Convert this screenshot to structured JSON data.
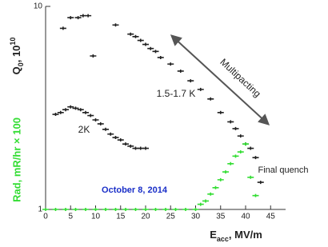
{
  "chart_data": {
    "type": "scatter",
    "ylabel": [
      "Q",
      "0",
      ", 10",
      "10"
    ],
    "y2label": "Rad, mR/hr × 100",
    "xlabel": [
      "E",
      "acc",
      ", MV/m"
    ],
    "xlim": [
      0,
      48
    ],
    "xticks": [
      0,
      5,
      10,
      15,
      20,
      25,
      30,
      35,
      40,
      45
    ],
    "ylim": [
      1,
      10
    ],
    "yticks": [
      1,
      10
    ],
    "log_y": true,
    "annotations": [
      "Multipacting",
      "1.5-1.7 K",
      "2K",
      "Final quench",
      "October 8, 2014"
    ],
    "series": [
      {
        "color": "#222222",
        "x": [
          3.5,
          5,
          6.5,
          7.5,
          8.5,
          9.5,
          14
        ],
        "values": [
          7.8,
          8.8,
          8.8,
          9.0,
          9.0,
          5.7,
          8.1
        ]
      },
      {
        "color": "#222222",
        "x": [
          17,
          18,
          19,
          20,
          21,
          22,
          23,
          25,
          27,
          29,
          31,
          33,
          35,
          37,
          38,
          39,
          40,
          41,
          42,
          43
        ],
        "values": [
          7.3,
          7.1,
          6.8,
          6.5,
          6.2,
          6.0,
          5.6,
          5.2,
          4.8,
          4.3,
          3.9,
          3.5,
          3.0,
          2.7,
          2.5,
          2.3,
          2.1,
          2.0,
          1.8,
          1.36
        ]
      },
      {
        "color": "#222222",
        "x": [
          2,
          3,
          4,
          5,
          6,
          7,
          8,
          9,
          10,
          11,
          12,
          13,
          14,
          15,
          16,
          17,
          18,
          19,
          20
        ],
        "values": [
          2.94,
          3.0,
          3.1,
          3.2,
          3.15,
          3.1,
          3.0,
          2.9,
          2.76,
          2.64,
          2.48,
          2.35,
          2.26,
          2.2,
          2.1,
          2.05,
          2.0,
          2.0,
          2.0
        ]
      },
      {
        "color": "#33dd33",
        "x": [
          0,
          2,
          4,
          6,
          8,
          10,
          12,
          14,
          16,
          18,
          20,
          22,
          24,
          26,
          28,
          30,
          31,
          32,
          33,
          34,
          35,
          36,
          37,
          38,
          39,
          40,
          41,
          42
        ],
        "values": [
          1,
          1,
          1,
          1,
          1,
          1,
          1,
          1,
          1,
          1,
          1,
          1,
          1,
          1,
          1,
          1,
          1.06,
          1.1,
          1.19,
          1.28,
          1.4,
          1.53,
          1.68,
          1.83,
          1.92,
          2.1,
          1.44,
          1.17
        ]
      }
    ]
  }
}
